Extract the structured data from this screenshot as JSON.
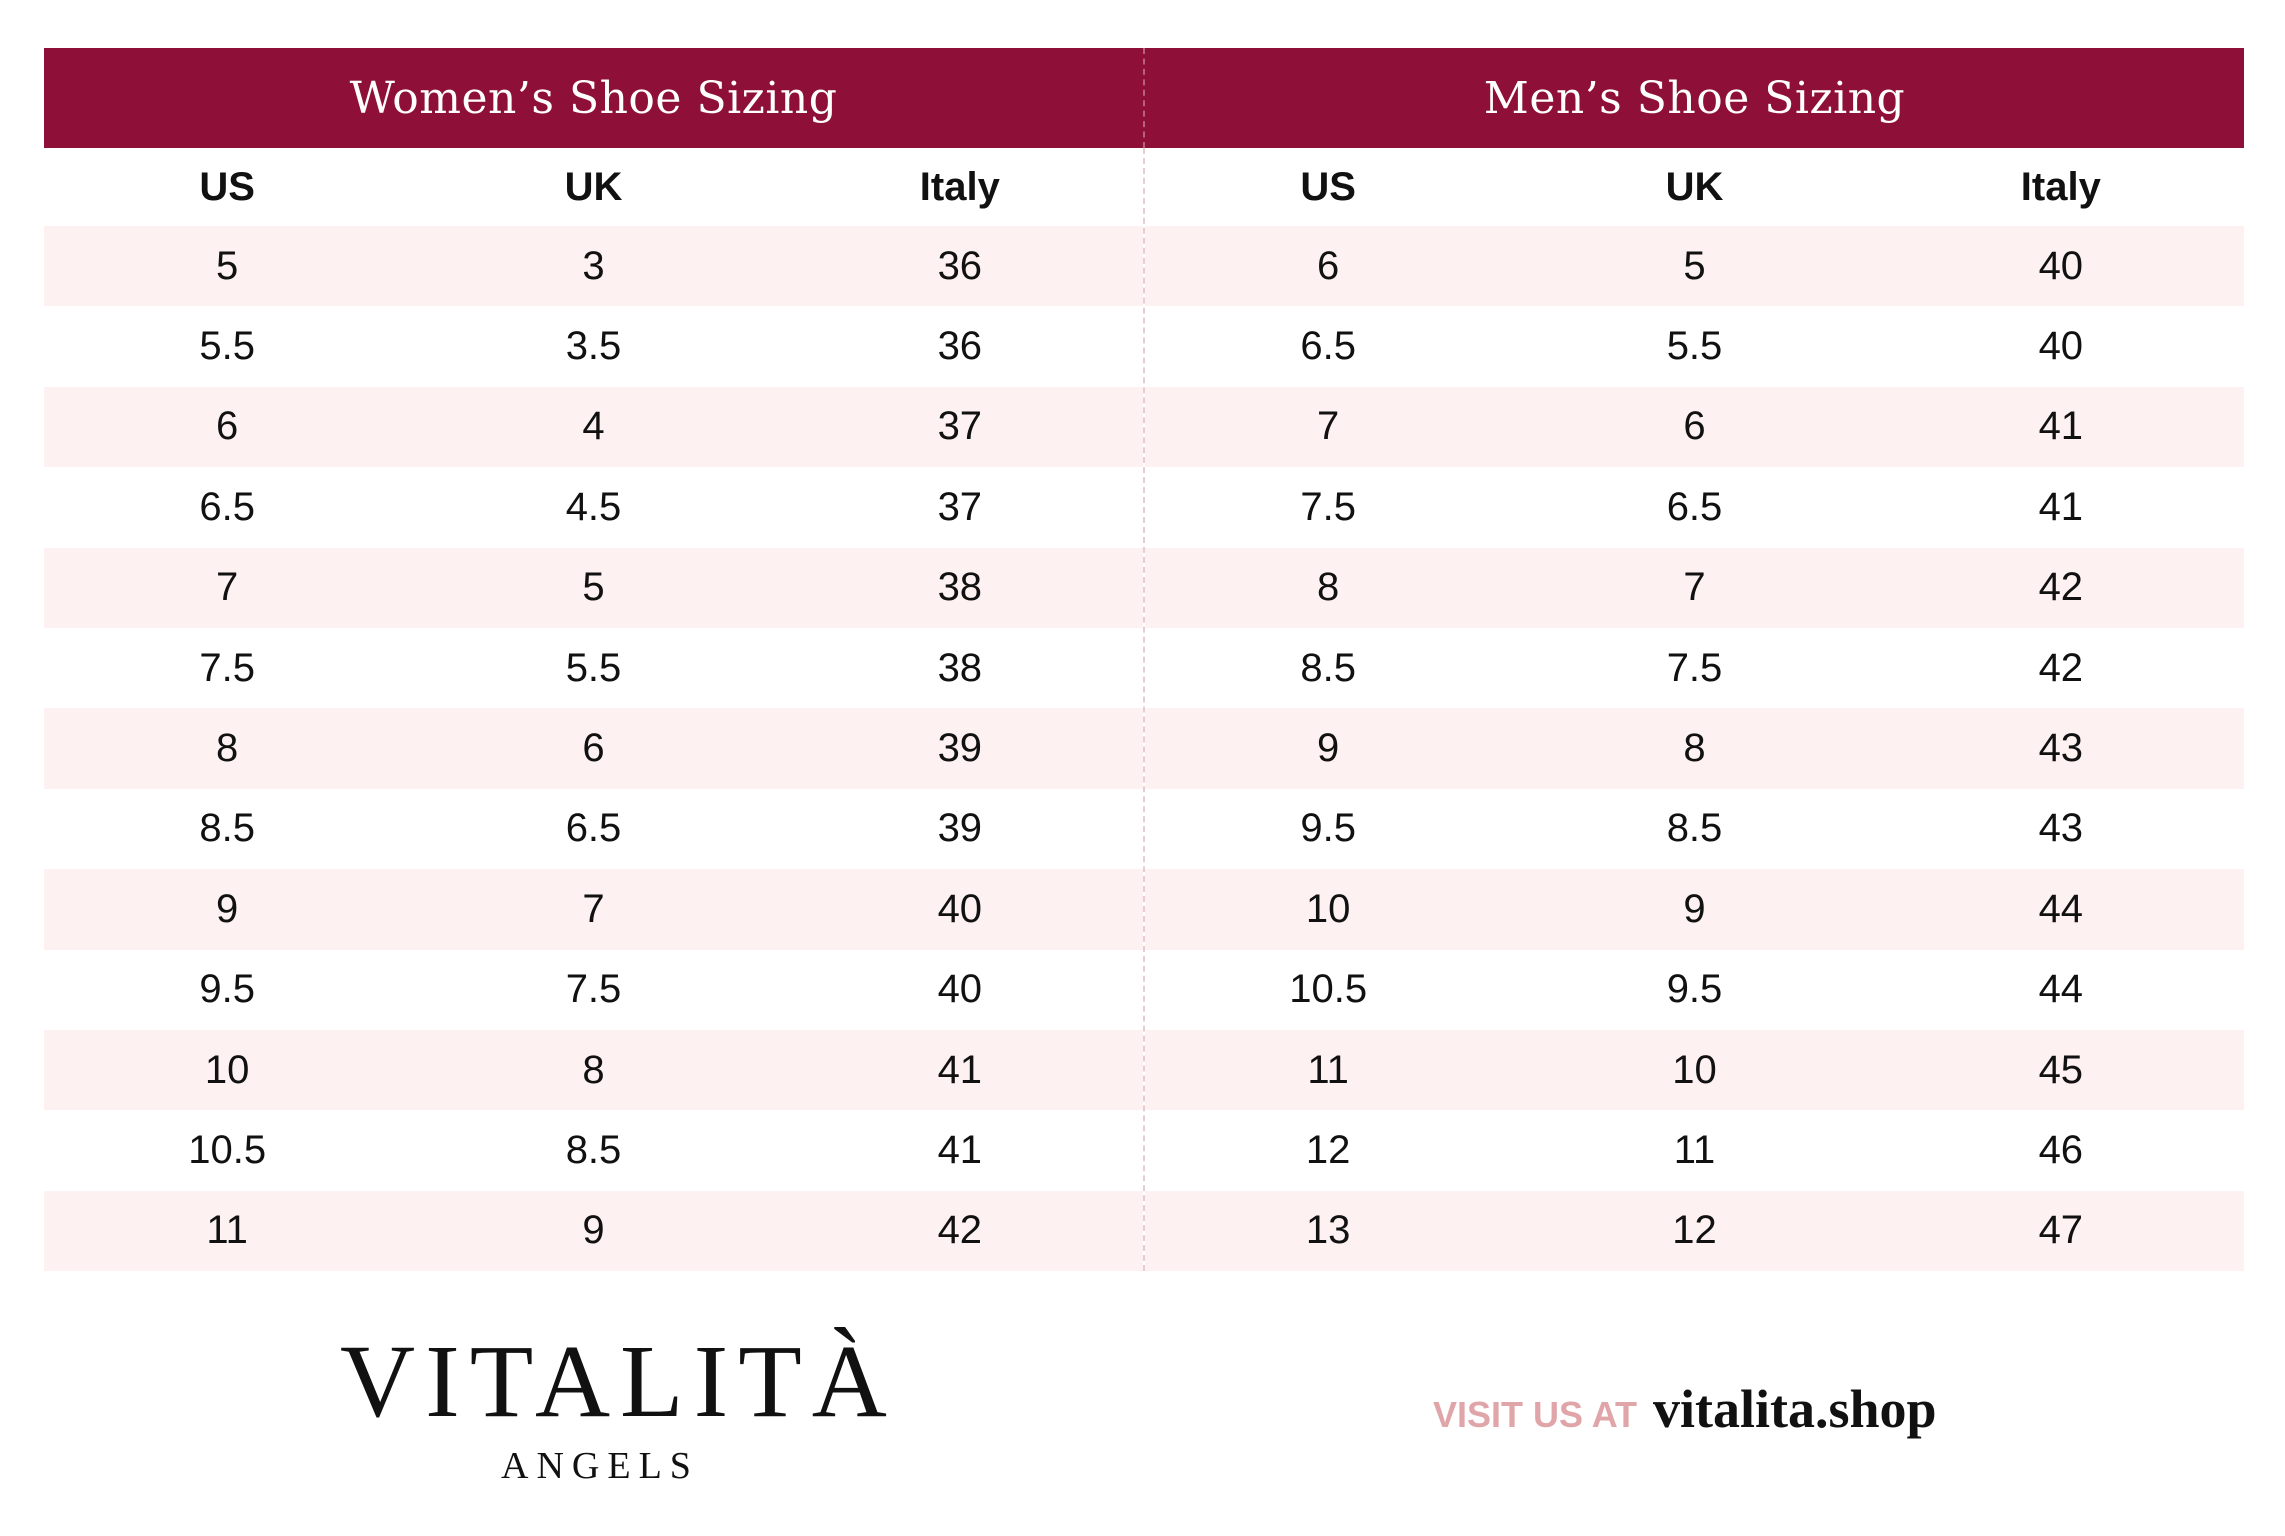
{
  "titles": {
    "women": "Women’s Shoe Sizing",
    "men": "Men’s Shoe Sizing"
  },
  "columns": [
    "US",
    "UK",
    "Italy"
  ],
  "women_rows": [
    [
      "5",
      "3",
      "36"
    ],
    [
      "5.5",
      "3.5",
      "36"
    ],
    [
      "6",
      "4",
      "37"
    ],
    [
      "6.5",
      "4.5",
      "37"
    ],
    [
      "7",
      "5",
      "38"
    ],
    [
      "7.5",
      "5.5",
      "38"
    ],
    [
      "8",
      "6",
      "39"
    ],
    [
      "8.5",
      "6.5",
      "39"
    ],
    [
      "9",
      "7",
      "40"
    ],
    [
      "9.5",
      "7.5",
      "40"
    ],
    [
      "10",
      "8",
      "41"
    ],
    [
      "10.5",
      "8.5",
      "41"
    ],
    [
      "11",
      "9",
      "42"
    ]
  ],
  "men_rows": [
    [
      "6",
      "5",
      "40"
    ],
    [
      "6.5",
      "5.5",
      "40"
    ],
    [
      "7",
      "6",
      "41"
    ],
    [
      "7.5",
      "6.5",
      "41"
    ],
    [
      "8",
      "7",
      "42"
    ],
    [
      "8.5",
      "7.5",
      "42"
    ],
    [
      "9",
      "8",
      "43"
    ],
    [
      "9.5",
      "8.5",
      "43"
    ],
    [
      "10",
      "9",
      "44"
    ],
    [
      "10.5",
      "9.5",
      "44"
    ],
    [
      "11",
      "10",
      "45"
    ],
    [
      "12",
      "11",
      "46"
    ],
    [
      "13",
      "12",
      "47"
    ]
  ],
  "logo": {
    "main": "VITALITÀ",
    "sub": "ANGELS"
  },
  "visit": {
    "label": "VISIT US AT",
    "url": "vitalita.shop"
  },
  "colors": {
    "header_bg": "#8e1038",
    "row_shade": "#fdf1f1",
    "visit_label": "#e0a5a9"
  }
}
